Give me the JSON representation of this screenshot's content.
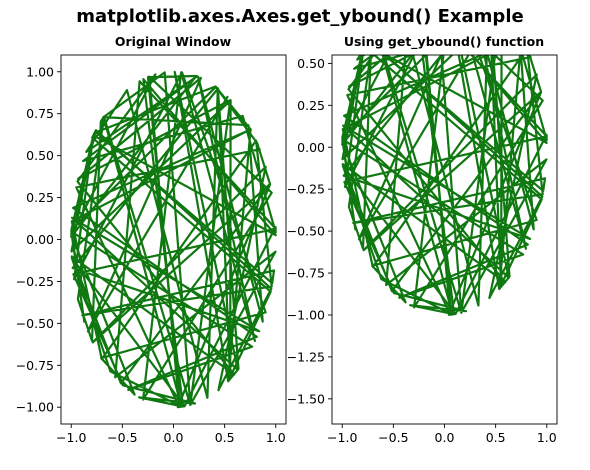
{
  "figure": {
    "suptitle": "matplotlib.axes.Axes.get_ybound() Example"
  },
  "chart_data": [
    {
      "type": "line",
      "title": "Original Window",
      "xlabel": "",
      "ylabel": "",
      "xlim": [
        -1.1,
        1.1
      ],
      "ylim": [
        -1.1,
        1.1
      ],
      "xticks": [
        -1.0,
        -0.5,
        0.0,
        0.5,
        1.0
      ],
      "xtick_labels": [
        "−1.0",
        "−0.5",
        "0.0",
        "0.5",
        "1.0"
      ],
      "yticks": [
        1.0,
        0.75,
        0.5,
        0.25,
        0.0,
        -0.25,
        -0.5,
        -0.75,
        -1.0
      ],
      "ytick_labels": [
        "1.00",
        "0.75",
        "0.50",
        "0.25",
        "0.00",
        "−0.25",
        "−0.50",
        "−0.75",
        "−1.00"
      ],
      "grid": false,
      "series": [
        {
          "color": "#107810",
          "description_of_data": "closed polyline connecting pseudo-random points on the unit circle"
        }
      ]
    },
    {
      "type": "line",
      "title": "Using get_ybound() function",
      "xlabel": "",
      "ylabel": "",
      "xlim": [
        -1.1,
        1.1
      ],
      "ylim": [
        -1.65,
        0.55
      ],
      "xticks": [
        -1.0,
        -0.5,
        0.0,
        0.5,
        1.0
      ],
      "xtick_labels": [
        "−1.0",
        "−0.5",
        "0.0",
        "0.5",
        "1.0"
      ],
      "yticks": [
        0.5,
        0.25,
        0.0,
        -0.25,
        -0.5,
        -0.75,
        -1.0,
        -1.25,
        -1.5
      ],
      "ytick_labels": [
        "0.50",
        "0.25",
        "0.00",
        "−0.25",
        "−0.50",
        "−0.75",
        "−1.00",
        "−1.25",
        "−1.50"
      ],
      "grid": false,
      "series": [
        {
          "color": "#107810",
          "description_of_data": "same polyline as left panel, clipped to y bound"
        }
      ]
    }
  ]
}
